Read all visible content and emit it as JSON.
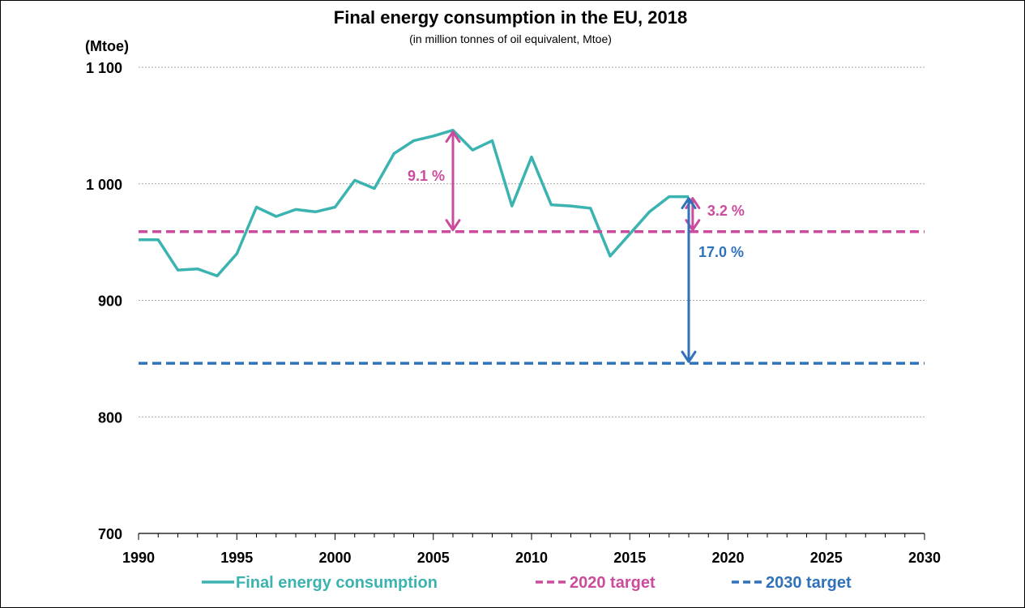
{
  "colors": {
    "consumption": "#3BB3B0",
    "target_2020": "#CB4B9C",
    "target_2030": "#2F72BA",
    "gridline": "#A6A6A6",
    "axis": "#000000"
  },
  "chart_data": {
    "type": "line",
    "title": "Final energy consumption in the EU, 2018",
    "subtitle": "(in million tonnes of oil equivalent, Mtoe)",
    "ylabel": "(Mtoe)",
    "xlabel": "",
    "xlim": [
      1990,
      2030
    ],
    "ylim": [
      700,
      1100
    ],
    "x_ticks": [
      1990,
      1995,
      2000,
      2005,
      2010,
      2015,
      2020,
      2025,
      2030
    ],
    "x_tick_labels": [
      "1990",
      "1995",
      "2000",
      "2005",
      "2010",
      "2015",
      "2020",
      "2025",
      "2030"
    ],
    "y_ticks": [
      700,
      800,
      900,
      1000,
      1100
    ],
    "y_tick_labels": [
      "700",
      "800",
      "900",
      "1 000",
      "1 100"
    ],
    "grid": true,
    "legend_position": "bottom",
    "series": [
      {
        "name": "Final energy consumption",
        "style": "solid",
        "x": [
          1990,
          1991,
          1992,
          1993,
          1994,
          1995,
          1996,
          1997,
          1998,
          1999,
          2000,
          2001,
          2002,
          2003,
          2004,
          2005,
          2006,
          2007,
          2008,
          2009,
          2010,
          2011,
          2012,
          2013,
          2014,
          2015,
          2016,
          2017,
          2018
        ],
        "values": [
          952,
          952,
          926,
          927,
          921,
          940,
          980,
          972,
          978,
          976,
          980,
          1003,
          996,
          1026,
          1037,
          1041,
          1046,
          1029,
          1037,
          981,
          1023,
          982,
          981,
          979,
          938,
          957,
          976,
          989,
          989
        ]
      },
      {
        "name": "2020 target",
        "style": "dashed",
        "x": [
          1990,
          2030
        ],
        "values": [
          959,
          959
        ]
      },
      {
        "name": "2030 target",
        "style": "dashed",
        "x": [
          1990,
          2030
        ],
        "values": [
          846,
          846
        ]
      }
    ],
    "annotations": [
      {
        "text": "9.1 %",
        "x": 2006,
        "from": 1046,
        "to": 959,
        "color_key": "target_2020"
      },
      {
        "text": "3.2 %",
        "x": 2018.2,
        "from": 989,
        "to": 959,
        "color_key": "target_2020"
      },
      {
        "text": "17.0 %",
        "x": 2018,
        "from": 989,
        "to": 846,
        "color_key": "target_2030"
      }
    ]
  }
}
